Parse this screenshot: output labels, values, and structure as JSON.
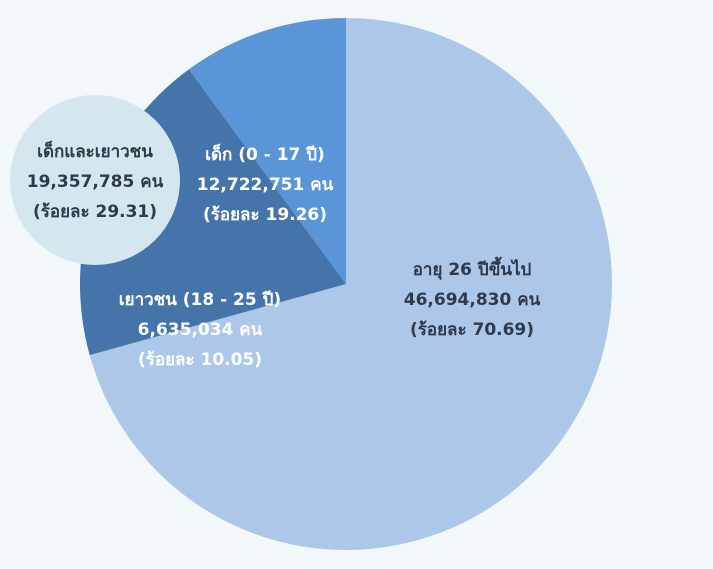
{
  "chart_data": {
    "type": "pie",
    "categories": [
      "อายุ 26 ปีขึ้นไป",
      "เด็ก (0 - 17 ปี)",
      "เยาวชน (18 - 25 ปี)"
    ],
    "count_labels": [
      "46,694,830 คน",
      "12,722,751 คน",
      "6,635,034 คน"
    ],
    "values": [
      70.69,
      19.26,
      10.05
    ],
    "value_labels": [
      "(ร้อยละ 70.69)",
      "(ร้อยละ 19.26)",
      "(ร้อยละ 10.05)"
    ],
    "colors": [
      "#adc7e9",
      "#4574ab",
      "#5a95d7"
    ],
    "annotation": {
      "title": "เด็กและเยาวชน",
      "count_label": "19,357,785 คน",
      "percent_label": "(ร้อยละ 29.31)"
    }
  }
}
